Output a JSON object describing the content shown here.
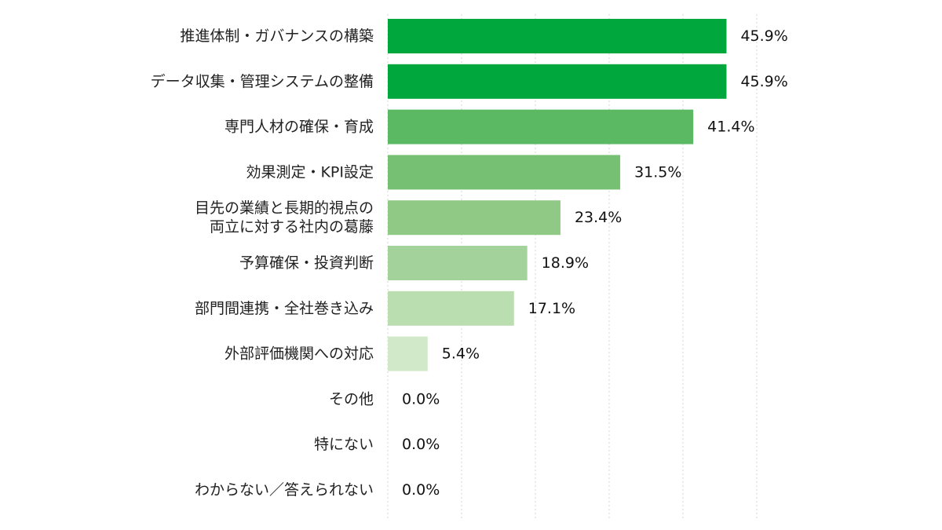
{
  "chart_data": {
    "type": "bar",
    "orientation": "horizontal",
    "categories": [
      [
        "推進体制・ガバナンスの構築"
      ],
      [
        "データ収集・管理システムの整備"
      ],
      [
        "専門人材の確保・育成"
      ],
      [
        "効果測定・KPI設定"
      ],
      [
        "目先の業績と長期的視点の",
        "両立に対する社内の葛藤"
      ],
      [
        "予算確保・投資判断"
      ],
      [
        "部門間連携・全社巻き込み"
      ],
      [
        "外部評価機関への対応"
      ],
      [
        "その他"
      ],
      [
        "特にない"
      ],
      [
        "わからない／答えられない"
      ]
    ],
    "values": [
      45.9,
      45.9,
      41.4,
      31.5,
      23.4,
      18.9,
      17.1,
      5.4,
      0.0,
      0.0,
      0.0
    ],
    "value_labels": [
      "45.9%",
      "45.9%",
      "41.4%",
      "31.5%",
      "23.4%",
      "18.9%",
      "17.1%",
      "5.4%",
      "0.0%",
      "0.0%",
      "0.0%"
    ],
    "bar_colors": [
      "#00a73c",
      "#00a73c",
      "#5bb863",
      "#75c073",
      "#90c985",
      "#a3d29a",
      "#bbdeb0",
      "#d1e8c9",
      "#d1e8c9",
      "#d1e8c9",
      "#d1e8c9"
    ],
    "xlim": [
      0,
      50
    ],
    "grid": true,
    "title": "",
    "xlabel": "",
    "ylabel": ""
  }
}
